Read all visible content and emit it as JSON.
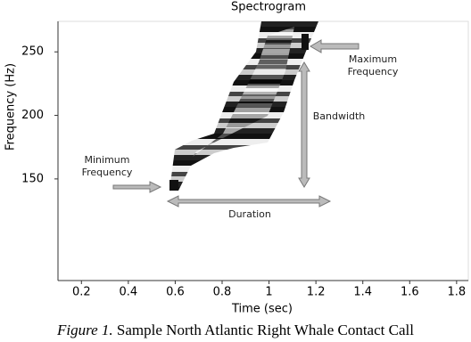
{
  "chart_data": {
    "type": "spectrogram",
    "title": "Spectrogram",
    "x_label": "Time (sec)",
    "y_label": "Frequency (Hz)",
    "xlim": [
      0.1,
      1.85
    ],
    "ylim": [
      70,
      274
    ],
    "xticks": [
      0.2,
      0.4,
      0.6,
      0.8,
      1,
      1.2,
      1.4,
      1.6,
      1.8
    ],
    "yticks": [
      150,
      200,
      250
    ],
    "annotations": [
      {
        "lines": [
          "Maximum",
          "Frequency"
        ]
      },
      {
        "lines": [
          "Bandwidth"
        ]
      },
      {
        "lines": [
          "Minimum",
          "Frequency"
        ]
      },
      {
        "lines": [
          "Duration"
        ]
      }
    ]
  },
  "caption": {
    "label": "Figure 1.",
    "text": "Sample North Atlantic Right Whale Contact Call"
  }
}
